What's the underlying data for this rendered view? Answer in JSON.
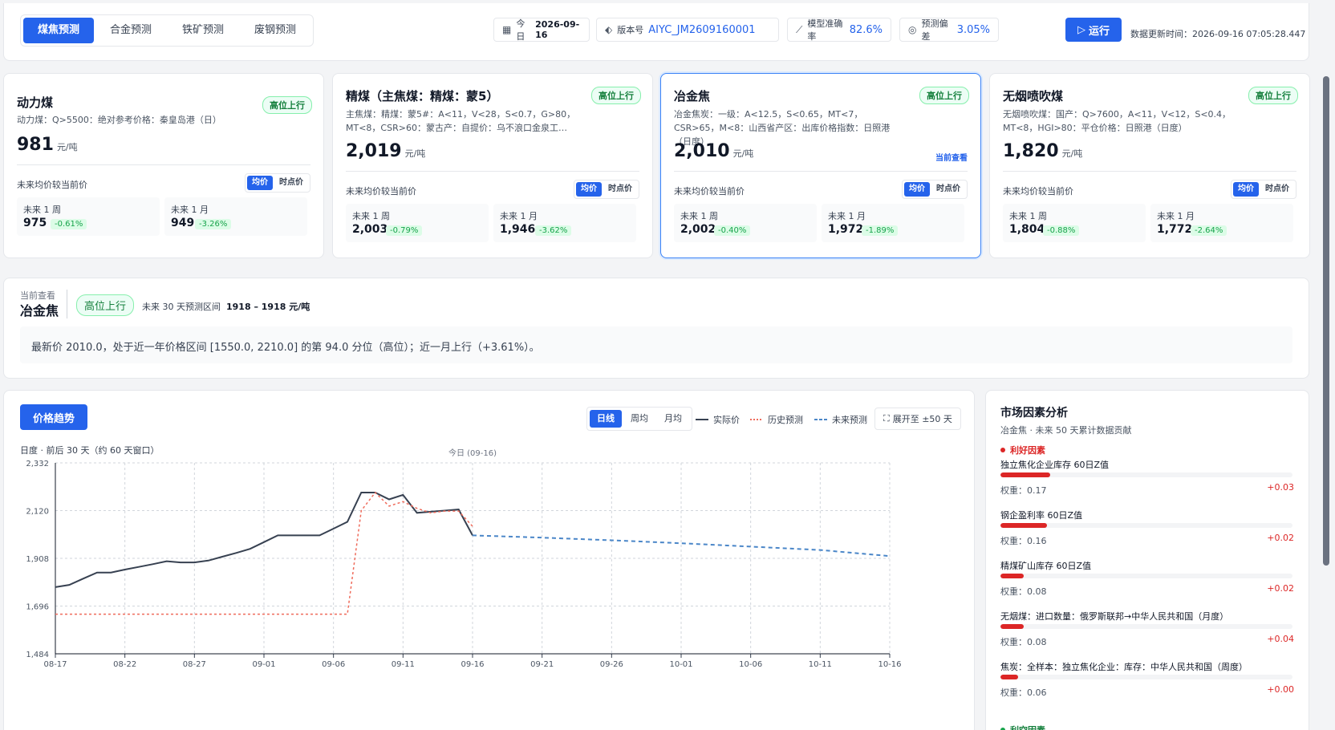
{
  "tabs": [
    {
      "label": "煤焦预测",
      "active": true
    },
    {
      "label": "合金预测",
      "active": false
    },
    {
      "label": "铁矿预测",
      "active": false
    },
    {
      "label": "废钢预测",
      "active": false
    }
  ],
  "header": {
    "today_label": "今日",
    "today_value": "2026-09-16",
    "version_label": "版本号",
    "version_value": "AIYC_JM2609160001",
    "accuracy_label": "模型准确率",
    "accuracy_value": "82.6%",
    "bias_label": "预测偏差",
    "bias_value": "3.05%",
    "run_label": "运行",
    "update_time": "数据更新时间：2026-09-16 07:05:28.447"
  },
  "common": {
    "compare_label": "未来均价较当前价",
    "seg_avg": "均价",
    "seg_point": "时点价",
    "week_label": "未来 1 周",
    "month_label": "未来 1 月",
    "unit": "元/吨",
    "current_view": "当前查看"
  },
  "products": [
    {
      "name": "动力煤",
      "badge": "高位上行",
      "desc": "动力煤：Q>5500：绝对参考价格：秦皇岛港（日）",
      "price": "981",
      "week_value": "975",
      "week_change": "-0.61%",
      "month_value": "949",
      "month_change": "-3.26%",
      "selected": false
    },
    {
      "name": "精煤（主焦煤：精煤：蒙5）",
      "badge": "高位上行",
      "desc": "主焦煤：精煤：蒙5#：A<11，V<28，S<0.7，G>80，MT<8，CSR>60：蒙古产：自提价：乌不浪口金泉工…",
      "price": "2,019",
      "week_value": "2,003",
      "week_change": "-0.79%",
      "month_value": "1,946",
      "month_change": "-3.62%",
      "selected": false
    },
    {
      "name": "冶金焦",
      "badge": "高位上行",
      "desc": "冶金焦炭：一级：A<12.5，S<0.65，MT<7，CSR>65，M<8：山西省产区：出库价格指数：日照港（日度）",
      "price": "2,010",
      "week_value": "2,002",
      "week_change": "-0.40%",
      "month_value": "1,972",
      "month_change": "-1.89%",
      "selected": true
    },
    {
      "name": "无烟喷吹煤",
      "badge": "高位上行",
      "desc": "无烟喷吹煤：国产：Q>7600，A<11，V<12，S<0.4，MT<8，HGI>80：平仓价格：日照港（日度）",
      "price": "1,820",
      "week_value": "1,804",
      "week_change": "-0.88%",
      "month_value": "1,772",
      "month_change": "-2.64%",
      "selected": false
    }
  ],
  "info": {
    "small": "当前查看",
    "name": "冶金焦",
    "badge": "高位上行",
    "range_label": "未来 30 天预测区间",
    "range_value": "1918 – 1918 元/吨",
    "summary": "最新价 2010.0，处于近一年价格区间 [1550.0, 2210.0] 的第 94.0 分位（高位）；近一月上行（+3.61%）。"
  },
  "chart_panel": {
    "trend_button": "价格趋势",
    "subtitle": "日度 · 前后 30 天（约 60 天窗口）",
    "granularity": [
      {
        "label": "日线",
        "active": true
      },
      {
        "label": "周均",
        "active": false
      },
      {
        "label": "月均",
        "active": false
      }
    ],
    "legend": [
      {
        "label": "实际价",
        "color": "#374151",
        "style": "solid"
      },
      {
        "label": "历史预测",
        "color": "#ef6b5b",
        "style": "dotted"
      },
      {
        "label": "未来预测",
        "color": "#4a86c8",
        "style": "dashed"
      }
    ],
    "expand_label": "展开至 ±50 天",
    "today_marker": "今日 (09-16)"
  },
  "chart_data": {
    "type": "line",
    "title": "",
    "xlabel": "",
    "ylabel": "",
    "x_start": "08-17",
    "x_ticks": [
      "08-17",
      "08-22",
      "08-27",
      "09-01",
      "09-06",
      "09-11",
      "09-16",
      "09-21",
      "09-26",
      "10-01",
      "10-06",
      "10-11",
      "10-16"
    ],
    "y_ticks": [
      "2,332",
      "2,120",
      "1,908",
      "1,696",
      "1,484"
    ],
    "ylim": [
      1484,
      2332
    ],
    "grid": true,
    "series": [
      {
        "name": "实际价",
        "day_index": [
          0,
          1,
          2,
          3,
          4,
          5,
          6,
          7,
          8,
          9,
          10,
          11,
          12,
          13,
          14,
          15,
          16,
          17,
          18,
          19,
          20,
          21,
          22,
          23,
          24,
          25,
          26,
          27,
          28,
          29,
          30
        ],
        "values": [
          1780,
          1790,
          1818,
          1845,
          1845,
          1858,
          1870,
          1882,
          1895,
          1890,
          1890,
          1898,
          1915,
          1932,
          1950,
          1980,
          2010,
          2010,
          2010,
          2010,
          2040,
          2070,
          2200,
          2200,
          2170,
          2190,
          2110,
          2115,
          2120,
          2125,
          2010
        ]
      },
      {
        "name": "历史预测",
        "day_index": [
          0,
          5,
          10,
          15,
          16,
          17,
          18,
          19,
          20,
          21,
          22,
          23,
          24,
          25,
          26,
          27,
          28,
          29,
          30
        ],
        "values": [
          1660,
          1660,
          1660,
          1660,
          1660,
          1660,
          1660,
          1660,
          1660,
          1660,
          2120,
          2200,
          2140,
          2160,
          2130,
          2110,
          2118,
          2118,
          2050
        ]
      },
      {
        "name": "未来预测",
        "day_index": [
          30,
          35,
          40,
          45,
          50,
          55,
          60
        ],
        "values": [
          2010,
          2000,
          1988,
          1975,
          1960,
          1945,
          1918
        ]
      }
    ]
  },
  "factors": {
    "title": "市场因素分析",
    "subtitle": "冶金焦 · 未来 50 天累计数据贡献",
    "positive_label": "利好因素",
    "negative_label": "利空因素",
    "weight_prefix": "权重：",
    "items": [
      {
        "name": "独立焦化企业库存 60日Z值",
        "weight": "0.17",
        "contrib": "+0.03",
        "fill": 0.17
      },
      {
        "name": "钢企盈利率 60日Z值",
        "weight": "0.16",
        "contrib": "+0.02",
        "fill": 0.16
      },
      {
        "name": "精煤矿山库存 60日Z值",
        "weight": "0.08",
        "contrib": "+0.02",
        "fill": 0.08
      },
      {
        "name": "无烟煤：进口数量：俄罗斯联邦→中华人民共和国（月度）",
        "weight": "0.08",
        "contrib": "+0.04",
        "fill": 0.08
      },
      {
        "name": "焦炭：全样本：独立焦化企业：库存：中华人民共和国（周度）",
        "weight": "0.06",
        "contrib": "+0.00",
        "fill": 0.06
      }
    ]
  },
  "colors": {
    "accent": "#2563eb",
    "positive": "#16a34a",
    "negative": "#dc2626"
  }
}
